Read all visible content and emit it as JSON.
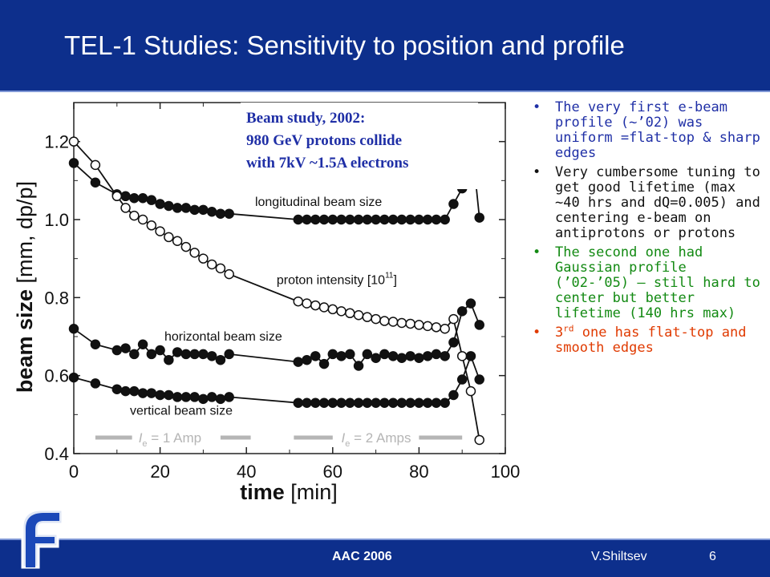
{
  "slide": {
    "title": "TEL-1 Studies: Sensitivity to position and profile",
    "footer_event": "AAC 2006",
    "footer_author": "V.Shiltsev",
    "page_number": "6"
  },
  "colors": {
    "header_bg": "#0d2f8c",
    "bullet_blue": "#1f2fa6",
    "bullet_black": "#111111",
    "bullet_green": "#138a13",
    "bullet_red": "#e03a00",
    "annotation_blue": "#1f2fa6"
  },
  "icons": {
    "logo": "fermilab-f-logo"
  },
  "bullets": [
    {
      "bullet": "•",
      "text": "The very first e-beam profile (~’02) was uniform =flat-top & sharp edges"
    },
    {
      "bullet": "•",
      "text": "Very cumbersome tuning to get good lifetime (max ~40 hrs and dQ=0.005) and centering e-beam on antiprotons or protons"
    },
    {
      "bullet": "•",
      "text": "The second one had Gaussian profile (’02-’05) – still hard to center but better lifetime (140 hrs max)"
    },
    {
      "bullet": "•",
      "prefix": "3",
      "sup": "rd",
      "text": " one has flat-top and smooth edges"
    }
  ],
  "chart_data": {
    "type": "scatter",
    "xlabel": "time",
    "xlabel_unit": "[min]",
    "ylabel": "beam size",
    "ylabel_unit": "[mm, dp/p]",
    "xlim": [
      0,
      100
    ],
    "ylim": [
      0.4,
      1.3
    ],
    "xticks": [
      "0",
      "20",
      "40",
      "60",
      "80",
      "100"
    ],
    "yticks": [
      "0.4",
      "0.6",
      "0.8",
      "1.0",
      "1.2"
    ],
    "annotation": [
      "Beam study, 2002:",
      "980 GeV protons collide",
      "with 7kV ~1.5A electrons"
    ],
    "current_labels": [
      {
        "prefix": "I",
        "sub": "e",
        "text": "= 1 Amp"
      },
      {
        "prefix": "I",
        "sub": "e",
        "text": "= 2 Amps"
      }
    ],
    "series": [
      {
        "name": "longitudinal beam size",
        "marker": "filled",
        "label_x": 42,
        "label_y": 1.035,
        "x": [
          0,
          5,
          10,
          12,
          14,
          16,
          18,
          20,
          22,
          24,
          26,
          28,
          30,
          32,
          34,
          36,
          52,
          54,
          56,
          58,
          60,
          62,
          64,
          66,
          68,
          70,
          72,
          74,
          76,
          78,
          80,
          82,
          84,
          86,
          88,
          90,
          92,
          94
        ],
        "y": [
          1.145,
          1.095,
          1.065,
          1.06,
          1.055,
          1.055,
          1.05,
          1.04,
          1.035,
          1.03,
          1.03,
          1.025,
          1.025,
          1.02,
          1.015,
          1.015,
          1.0,
          1.0,
          1.0,
          1.0,
          1.0,
          1.0,
          1.0,
          1.0,
          1.0,
          1.0,
          1.0,
          1.0,
          1.0,
          1.0,
          1.0,
          1.0,
          1.0,
          1.0,
          1.04,
          1.08,
          1.22,
          1.005
        ]
      },
      {
        "name": "proton intensity  [10",
        "name_sup": "11",
        "name_suffix": "]",
        "marker": "open",
        "label_x": 47,
        "label_y": 0.835,
        "x": [
          0,
          5,
          10,
          12,
          14,
          16,
          18,
          20,
          22,
          24,
          26,
          28,
          30,
          32,
          34,
          36,
          52,
          54,
          56,
          58,
          60,
          62,
          64,
          66,
          68,
          70,
          72,
          74,
          76,
          78,
          80,
          82,
          84,
          86,
          88,
          90,
          92,
          94
        ],
        "y": [
          1.2,
          1.14,
          1.06,
          1.03,
          1.01,
          1.0,
          0.985,
          0.97,
          0.955,
          0.945,
          0.93,
          0.915,
          0.9,
          0.885,
          0.875,
          0.86,
          0.79,
          0.785,
          0.78,
          0.775,
          0.77,
          0.765,
          0.76,
          0.755,
          0.75,
          0.745,
          0.74,
          0.738,
          0.735,
          0.733,
          0.73,
          0.727,
          0.724,
          0.72,
          0.745,
          0.65,
          0.56,
          0.435
        ]
      },
      {
        "name": "horizontal beam size",
        "marker": "filled",
        "label_x": 21,
        "label_y": 0.69,
        "x": [
          0,
          5,
          10,
          12,
          14,
          16,
          18,
          20,
          22,
          24,
          26,
          28,
          30,
          32,
          34,
          36,
          52,
          54,
          56,
          58,
          60,
          62,
          64,
          66,
          68,
          70,
          72,
          74,
          76,
          78,
          80,
          82,
          84,
          86,
          88,
          90,
          92,
          94
        ],
        "y": [
          0.72,
          0.68,
          0.665,
          0.67,
          0.655,
          0.68,
          0.655,
          0.665,
          0.64,
          0.66,
          0.655,
          0.655,
          0.655,
          0.65,
          0.64,
          0.655,
          0.635,
          0.64,
          0.65,
          0.63,
          0.655,
          0.65,
          0.655,
          0.625,
          0.655,
          0.645,
          0.655,
          0.65,
          0.645,
          0.65,
          0.645,
          0.65,
          0.655,
          0.65,
          0.685,
          0.765,
          0.785,
          0.73
        ]
      },
      {
        "name": "vertical beam size",
        "marker": "filled",
        "label_x": 13,
        "label_y": 0.5,
        "x": [
          0,
          5,
          10,
          12,
          14,
          16,
          18,
          20,
          22,
          24,
          26,
          28,
          30,
          32,
          34,
          36,
          52,
          54,
          56,
          58,
          60,
          62,
          64,
          66,
          68,
          70,
          72,
          74,
          76,
          78,
          80,
          82,
          84,
          86,
          88,
          90,
          92,
          94
        ],
        "y": [
          0.595,
          0.58,
          0.565,
          0.56,
          0.56,
          0.555,
          0.555,
          0.55,
          0.55,
          0.545,
          0.545,
          0.545,
          0.54,
          0.545,
          0.54,
          0.545,
          0.53,
          0.53,
          0.53,
          0.53,
          0.53,
          0.53,
          0.53,
          0.53,
          0.53,
          0.53,
          0.53,
          0.53,
          0.53,
          0.53,
          0.53,
          0.53,
          0.53,
          0.53,
          0.55,
          0.59,
          0.65,
          0.59
        ]
      }
    ]
  }
}
